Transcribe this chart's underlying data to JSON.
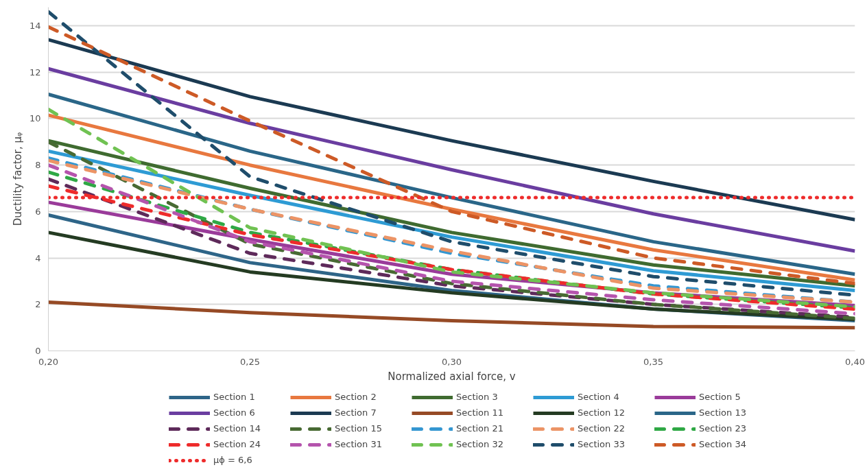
{
  "chart_data": {
    "type": "line",
    "xlabel": "Normalized axial force, v",
    "ylabel": "Ductility factor, μᵩ",
    "x": [
      0.2,
      0.25,
      0.3,
      0.35,
      0.4
    ],
    "xlim": [
      0.2,
      0.4
    ],
    "xticks": [
      {
        "value": 0.2,
        "label": "0,20"
      },
      {
        "value": 0.25,
        "label": "0,25"
      },
      {
        "value": 0.3,
        "label": "0,30"
      },
      {
        "value": 0.35,
        "label": "0,35"
      },
      {
        "value": 0.4,
        "label": "0,40"
      }
    ],
    "ylim": [
      0,
      14.8
    ],
    "yticks": [
      0,
      2,
      4,
      6,
      8,
      10,
      12,
      14
    ],
    "grid": "y",
    "legend": "bottom",
    "marker": "none",
    "series": [
      {
        "name": "Section 1",
        "color": "#2e6588",
        "line_style": "solid",
        "values": [
          5.85,
          3.8,
          2.6,
          1.8,
          1.3
        ]
      },
      {
        "name": "Section 2",
        "color": "#e8783f",
        "line_style": "solid",
        "values": [
          10.15,
          8.0,
          6.1,
          4.35,
          3.05
        ]
      },
      {
        "name": "Section 3",
        "color": "#3f6b30",
        "line_style": "solid",
        "values": [
          9.05,
          7.0,
          5.1,
          3.7,
          2.8
        ]
      },
      {
        "name": "Section 4",
        "color": "#2e9bd4",
        "line_style": "solid",
        "values": [
          8.6,
          6.7,
          4.9,
          3.45,
          2.6
        ]
      },
      {
        "name": "Section 5",
        "color": "#9a3b9a",
        "line_style": "solid",
        "values": [
          6.4,
          4.8,
          3.3,
          2.5,
          1.95
        ]
      },
      {
        "name": "Section 6",
        "color": "#6a3da0",
        "line_style": "solid",
        "values": [
          12.15,
          9.8,
          7.8,
          5.9,
          4.3
        ]
      },
      {
        "name": "Section 7",
        "color": "#1b3a52",
        "line_style": "solid",
        "values": [
          13.4,
          10.95,
          9.05,
          7.3,
          5.65
        ]
      },
      {
        "name": "Section 11",
        "color": "#964a25",
        "line_style": "solid",
        "values": [
          2.1,
          1.65,
          1.3,
          1.05,
          1.0
        ]
      },
      {
        "name": "Section 12",
        "color": "#243b22",
        "line_style": "solid",
        "values": [
          5.1,
          3.4,
          2.5,
          1.8,
          1.35
        ]
      },
      {
        "name": "Section 13",
        "color": "#2a6688",
        "line_style": "solid",
        "values": [
          11.05,
          8.6,
          6.6,
          4.7,
          3.3
        ]
      },
      {
        "name": "Section 14",
        "color": "#5e2a5a",
        "line_style": "dashed",
        "values": [
          7.4,
          4.2,
          2.8,
          2.0,
          1.45
        ]
      },
      {
        "name": "Section 15",
        "color": "#486a33",
        "line_style": "dashed",
        "values": [
          9.0,
          4.6,
          2.9,
          2.0,
          1.4
        ]
      },
      {
        "name": "Section 21",
        "color": "#3597d1",
        "line_style": "dashed",
        "values": [
          8.3,
          6.1,
          4.2,
          2.8,
          2.1
        ]
      },
      {
        "name": "Section 22",
        "color": "#ec9466",
        "line_style": "dashed",
        "values": [
          8.2,
          6.1,
          4.3,
          2.7,
          2.1
        ]
      },
      {
        "name": "Section 23",
        "color": "#2fa845",
        "line_style": "dashed",
        "values": [
          7.7,
          5.1,
          3.5,
          2.45,
          1.85
        ]
      },
      {
        "name": "Section 24",
        "color": "#ee2b2b",
        "line_style": "dashed",
        "values": [
          7.1,
          5.0,
          3.5,
          2.45,
          1.8
        ]
      },
      {
        "name": "Section 31",
        "color": "#b554ad",
        "line_style": "dashed",
        "values": [
          8.0,
          4.7,
          3.0,
          2.2,
          1.6
        ]
      },
      {
        "name": "Section 32",
        "color": "#70c252",
        "line_style": "dashed",
        "values": [
          10.4,
          5.3,
          3.4,
          2.5,
          1.9
        ]
      },
      {
        "name": "Section 33",
        "color": "#1f4d6b",
        "line_style": "dashed",
        "values": [
          14.6,
          7.5,
          4.7,
          3.2,
          2.4
        ]
      },
      {
        "name": "Section 34",
        "color": "#cd5a26",
        "line_style": "dashed",
        "values": [
          13.95,
          9.9,
          6.0,
          4.0,
          2.9
        ]
      }
    ],
    "ref_lines": [
      {
        "axis": "y",
        "value": 6.6,
        "label": "μϕ = 6,6",
        "color": "#ee2b2b",
        "line_style": "dotted"
      }
    ]
  }
}
